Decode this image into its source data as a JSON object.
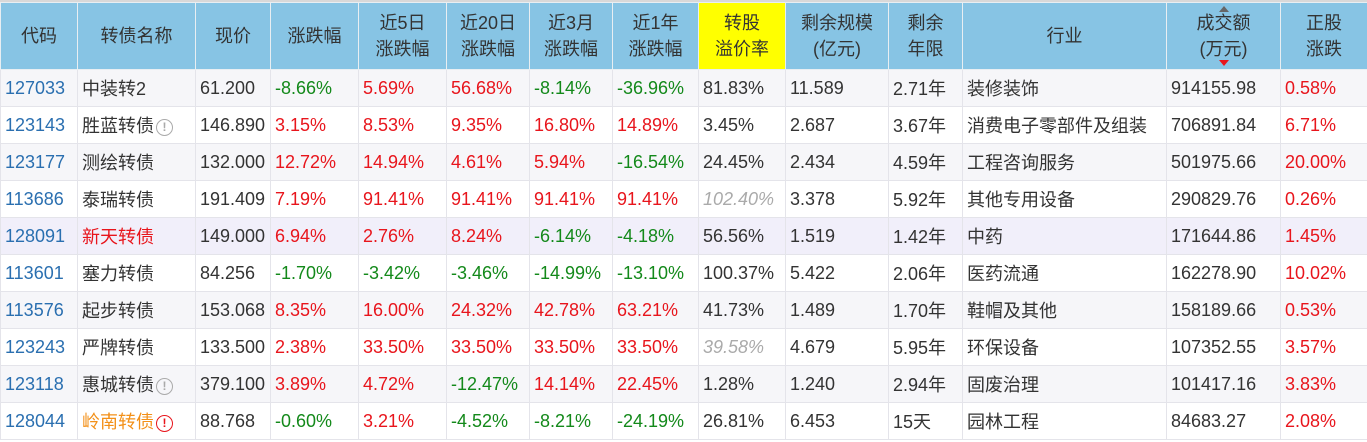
{
  "headers": [
    "代码",
    "转债名称",
    "现价",
    "涨跌幅",
    "近5日\n涨跌幅",
    "近20日\n涨跌幅",
    "近3月\n涨跌幅",
    "近1年\n涨跌幅",
    "转股\n溢价率",
    "剩余规模\n(亿元)",
    "剩余\n年限",
    "行业",
    "成交额\n(万元)",
    "正股\n涨跌"
  ],
  "sorted_column": "成交额",
  "colors": {
    "header": "#87c4e4",
    "highlight": "#ffff00",
    "up": "#e8151c",
    "down": "#13891a",
    "code": "#2a6fb0"
  },
  "rows": [
    {
      "code": "127033",
      "name": "中装转2",
      "icon": "",
      "price": "61.200",
      "chg": "-8.66%",
      "d5": "5.69%",
      "d20": "56.68%",
      "m3": "-8.14%",
      "y1": "-36.96%",
      "premium": "81.83%",
      "scale": "11.589",
      "years": "2.71年",
      "industry": "装修装饰",
      "amount": "914155.98",
      "stock": "0.58%"
    },
    {
      "code": "123143",
      "name": "胜蓝转债",
      "icon": "info-gray",
      "price": "146.890",
      "chg": "3.15%",
      "d5": "8.53%",
      "d20": "9.35%",
      "m3": "16.80%",
      "y1": "14.89%",
      "premium": "3.45%",
      "scale": "2.687",
      "years": "3.67年",
      "industry": "消费电子零部件及组装",
      "amount": "706891.84",
      "stock": "6.71%"
    },
    {
      "code": "123177",
      "name": "测绘转债",
      "icon": "",
      "price": "132.000",
      "chg": "12.72%",
      "d5": "14.94%",
      "d20": "4.61%",
      "m3": "5.94%",
      "y1": "-16.54%",
      "premium": "24.45%",
      "scale": "2.434",
      "years": "4.59年",
      "industry": "工程咨询服务",
      "amount": "501975.66",
      "stock": "20.00%"
    },
    {
      "code": "113686",
      "name": "泰瑞转债",
      "icon": "",
      "price": "191.409",
      "chg": "7.19%",
      "d5": "91.41%",
      "d20": "91.41%",
      "m3": "91.41%",
      "y1": "91.41%",
      "premium": "102.40%",
      "premium_gray": true,
      "scale": "3.378",
      "years": "5.92年",
      "industry": "其他专用设备",
      "amount": "290829.76",
      "stock": "0.26%"
    },
    {
      "code": "128091",
      "name": "新天转债",
      "name_color": "red",
      "icon": "",
      "price": "149.000",
      "chg": "6.94%",
      "d5": "2.76%",
      "d20": "8.24%",
      "m3": "-6.14%",
      "y1": "-4.18%",
      "premium": "56.56%",
      "scale": "1.519",
      "years": "1.42年",
      "industry": "中药",
      "amount": "171644.86",
      "stock": "1.45%"
    },
    {
      "code": "113601",
      "name": "塞力转债",
      "icon": "",
      "price": "84.256",
      "chg": "-1.70%",
      "d5": "-3.42%",
      "d20": "-3.46%",
      "m3": "-14.99%",
      "y1": "-13.10%",
      "premium": "100.37%",
      "scale": "5.422",
      "years": "2.06年",
      "industry": "医药流通",
      "amount": "162278.90",
      "stock": "10.02%"
    },
    {
      "code": "113576",
      "name": "起步转债",
      "icon": "",
      "price": "153.068",
      "chg": "8.35%",
      "d5": "16.00%",
      "d20": "24.32%",
      "m3": "42.78%",
      "y1": "63.21%",
      "premium": "41.73%",
      "scale": "1.489",
      "years": "1.70年",
      "industry": "鞋帽及其他",
      "amount": "158189.66",
      "stock": "0.53%"
    },
    {
      "code": "123243",
      "name": "严牌转债",
      "icon": "",
      "price": "133.500",
      "chg": "2.38%",
      "d5": "33.50%",
      "d20": "33.50%",
      "m3": "33.50%",
      "y1": "33.50%",
      "premium": "39.58%",
      "premium_gray": true,
      "scale": "4.679",
      "years": "5.95年",
      "industry": "环保设备",
      "amount": "107352.55",
      "stock": "3.57%"
    },
    {
      "code": "123118",
      "name": "惠城转债",
      "icon": "info-gray",
      "price": "379.100",
      "chg": "3.89%",
      "d5": "4.72%",
      "d20": "-12.47%",
      "m3": "14.14%",
      "y1": "22.45%",
      "premium": "1.28%",
      "scale": "1.240",
      "years": "2.94年",
      "industry": "固废治理",
      "amount": "101417.16",
      "stock": "3.83%"
    },
    {
      "code": "128044",
      "name": "岭南转债",
      "name_color": "orange",
      "icon": "warning-red",
      "price": "88.768",
      "chg": "-0.60%",
      "d5": "3.21%",
      "d20": "-4.52%",
      "m3": "-8.21%",
      "y1": "-24.19%",
      "premium": "26.81%",
      "scale": "6.453",
      "years": "15天",
      "industry": "园林工程",
      "amount": "84683.27",
      "stock": "2.08%"
    }
  ]
}
